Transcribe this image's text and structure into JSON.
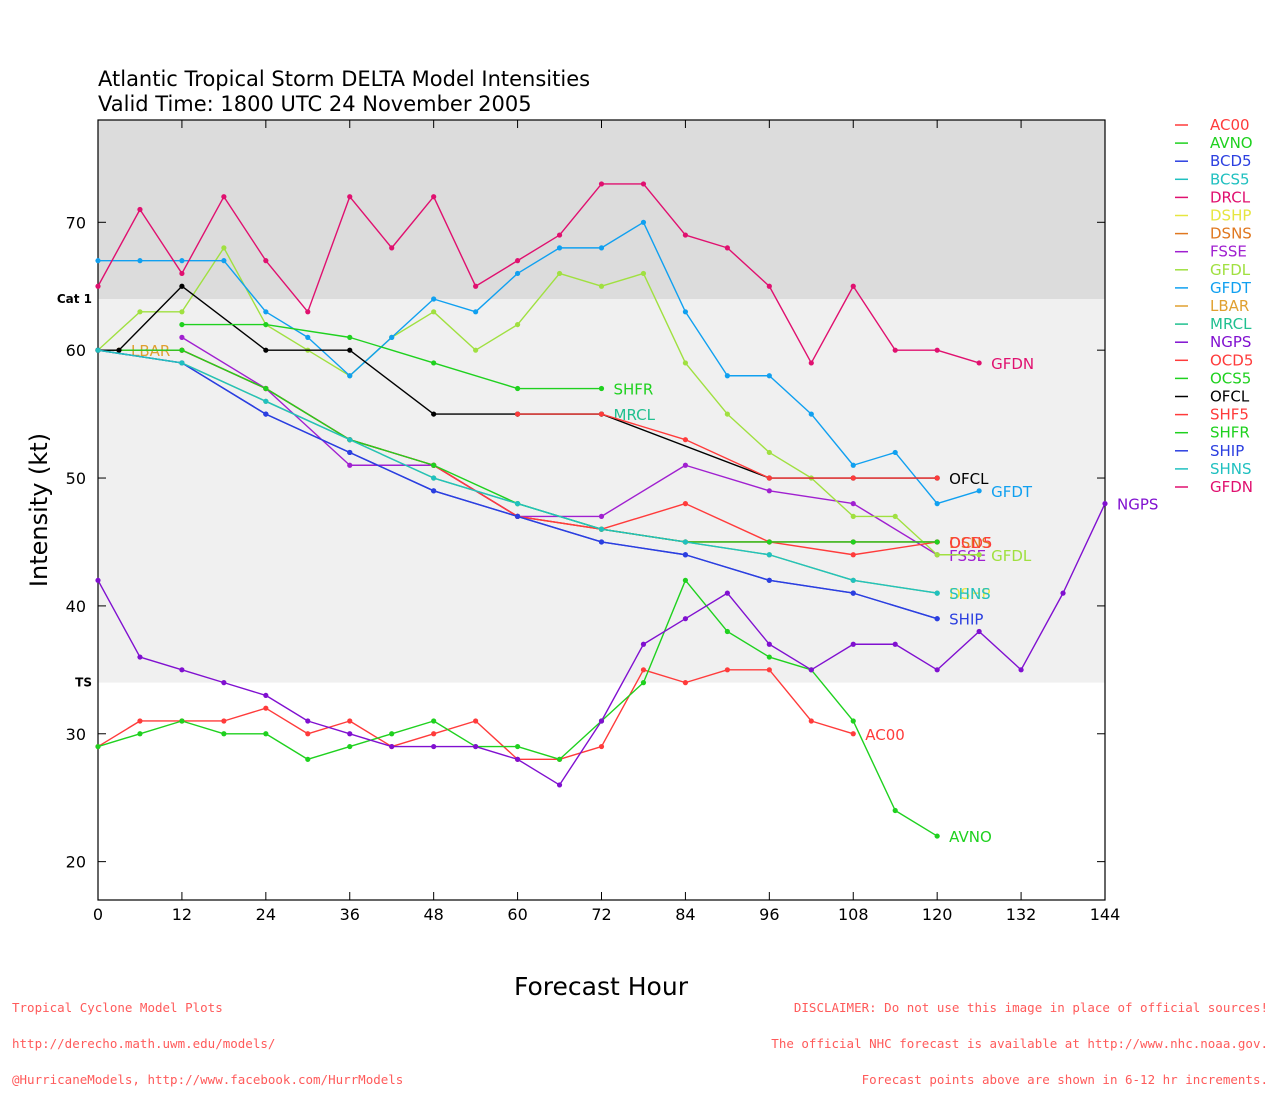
{
  "title_lines": [
    "Atlantic Tropical Storm DELTA Model Intensities",
    "Valid Time: 1800 UTC 24 November 2005"
  ],
  "footer": {
    "left_lines": [
      "Tropical Cyclone Model Plots",
      "http://derecho.math.uwm.edu/models/",
      "@HurricaneModels, http://www.facebook.com/HurrModels"
    ],
    "center": "Forecast Hour",
    "right_lines": [
      "DISCLAIMER: Do not use this image in place of official sources!",
      "The official NHC forecast is available at http://www.nhc.noaa.gov.",
      "Forecast points above are shown in 6-12 hr increments."
    ]
  },
  "chart_data": {
    "type": "line",
    "title": "Atlantic Tropical Storm DELTA Model Intensities",
    "subtitle": "Valid Time: 1800 UTC 24 November 2005",
    "xlabel": "Forecast Hour",
    "ylabel": "Intensity (kt)",
    "xlim": [
      0,
      144
    ],
    "ylim": [
      17,
      78
    ],
    "xticks": [
      0,
      12,
      24,
      36,
      48,
      60,
      72,
      84,
      96,
      108,
      120,
      132,
      144
    ],
    "yticks": [
      20,
      30,
      40,
      50,
      60,
      70
    ],
    "bands": [
      {
        "label": "Cat 1",
        "from": 64,
        "to": 78,
        "color": "#dcdcdc"
      },
      {
        "label": "TS",
        "from": 34,
        "to": 64,
        "color": "#f0f0f0"
      }
    ],
    "legend_position": "right",
    "series": [
      {
        "name": "AC00",
        "color": "#ff3b3b",
        "label": "AC00",
        "points": [
          [
            0,
            29
          ],
          [
            6,
            31
          ],
          [
            12,
            31
          ],
          [
            18,
            31
          ],
          [
            24,
            32
          ],
          [
            30,
            30
          ],
          [
            36,
            31
          ],
          [
            42,
            29
          ],
          [
            48,
            30
          ],
          [
            54,
            31
          ],
          [
            60,
            28
          ],
          [
            66,
            28
          ],
          [
            72,
            29
          ],
          [
            78,
            35
          ],
          [
            84,
            34
          ],
          [
            90,
            35
          ],
          [
            96,
            35
          ],
          [
            102,
            31
          ],
          [
            108,
            30
          ]
        ]
      },
      {
        "name": "AVNO",
        "color": "#1fd11f",
        "label": "AVNO",
        "points": [
          [
            0,
            29
          ],
          [
            6,
            30
          ],
          [
            12,
            31
          ],
          [
            18,
            30
          ],
          [
            24,
            30
          ],
          [
            30,
            28
          ],
          [
            36,
            29
          ],
          [
            42,
            30
          ],
          [
            48,
            31
          ],
          [
            54,
            29
          ],
          [
            60,
            29
          ],
          [
            66,
            28
          ],
          [
            72,
            31
          ],
          [
            78,
            34
          ],
          [
            84,
            42
          ],
          [
            90,
            38
          ],
          [
            96,
            36
          ],
          [
            102,
            35
          ],
          [
            108,
            31
          ],
          [
            114,
            24
          ],
          [
            120,
            22
          ]
        ]
      },
      {
        "name": "BCD5",
        "color": "#2b3fe0",
        "label": "",
        "points": [
          [
            0,
            60
          ],
          [
            12,
            59
          ],
          [
            24,
            55
          ],
          [
            36,
            52
          ],
          [
            48,
            49
          ],
          [
            60,
            47
          ],
          [
            72,
            45
          ],
          [
            84,
            44
          ],
          [
            96,
            42
          ],
          [
            108,
            41
          ],
          [
            120,
            39
          ]
        ]
      },
      {
        "name": "BCS5",
        "color": "#20c0c0",
        "label": "",
        "points": [
          [
            0,
            60
          ],
          [
            12,
            59
          ],
          [
            24,
            56
          ],
          [
            36,
            53
          ],
          [
            48,
            50
          ],
          [
            60,
            48
          ],
          [
            72,
            46
          ],
          [
            84,
            45
          ],
          [
            96,
            44
          ],
          [
            108,
            42
          ],
          [
            120,
            41
          ]
        ]
      },
      {
        "name": "DRCL",
        "color": "#e0106f",
        "label": "",
        "points": [
          [
            0,
            60
          ],
          [
            12,
            60
          ],
          [
            24,
            57
          ],
          [
            36,
            53
          ],
          [
            48,
            51
          ],
          [
            60,
            47
          ],
          [
            72,
            46
          ],
          [
            84,
            45
          ],
          [
            96,
            45
          ],
          [
            108,
            45
          ],
          [
            120,
            45
          ]
        ]
      },
      {
        "name": "DSHP",
        "color": "#e6e640",
        "label": "DSHP",
        "points": [
          [
            0,
            60
          ],
          [
            12,
            59
          ],
          [
            24,
            56
          ],
          [
            36,
            53
          ],
          [
            48,
            50
          ],
          [
            60,
            48
          ],
          [
            72,
            46
          ],
          [
            84,
            45
          ],
          [
            96,
            44
          ],
          [
            108,
            42
          ],
          [
            120,
            41
          ]
        ]
      },
      {
        "name": "DSNS",
        "color": "#e07820",
        "label": "DSNS",
        "points": [
          [
            0,
            60
          ],
          [
            12,
            60
          ],
          [
            24,
            57
          ],
          [
            36,
            53
          ],
          [
            48,
            51
          ],
          [
            60,
            47
          ],
          [
            72,
            46
          ],
          [
            84,
            45
          ],
          [
            96,
            45
          ],
          [
            108,
            45
          ],
          [
            120,
            45
          ]
        ]
      },
      {
        "name": "FSSE",
        "color": "#a020d0",
        "label": "FSSE",
        "points": [
          [
            12,
            61
          ],
          [
            24,
            57
          ],
          [
            36,
            51
          ],
          [
            48,
            51
          ],
          [
            60,
            47
          ],
          [
            72,
            47
          ],
          [
            84,
            51
          ],
          [
            96,
            49
          ],
          [
            108,
            48
          ],
          [
            120,
            44
          ]
        ]
      },
      {
        "name": "GFDL",
        "color": "#a0e040",
        "label": "GFDL",
        "points": [
          [
            0,
            60
          ],
          [
            6,
            63
          ],
          [
            12,
            63
          ],
          [
            18,
            68
          ],
          [
            24,
            62
          ],
          [
            30,
            60
          ],
          [
            36,
            58
          ],
          [
            42,
            61
          ],
          [
            48,
            63
          ],
          [
            54,
            60
          ],
          [
            60,
            62
          ],
          [
            66,
            66
          ],
          [
            72,
            65
          ],
          [
            78,
            66
          ],
          [
            84,
            59
          ],
          [
            90,
            55
          ],
          [
            96,
            52
          ],
          [
            102,
            50
          ],
          [
            108,
            47
          ],
          [
            114,
            47
          ],
          [
            120,
            44
          ],
          [
            126,
            44
          ]
        ]
      },
      {
        "name": "GFDT",
        "color": "#10a0f0",
        "label": "GFDT",
        "points": [
          [
            0,
            67
          ],
          [
            6,
            67
          ],
          [
            12,
            67
          ],
          [
            18,
            67
          ],
          [
            24,
            63
          ],
          [
            30,
            61
          ],
          [
            36,
            58
          ],
          [
            42,
            61
          ],
          [
            48,
            64
          ],
          [
            54,
            63
          ],
          [
            60,
            66
          ],
          [
            66,
            68
          ],
          [
            72,
            68
          ],
          [
            78,
            70
          ],
          [
            84,
            63
          ],
          [
            90,
            58
          ],
          [
            96,
            58
          ],
          [
            102,
            55
          ],
          [
            108,
            51
          ],
          [
            114,
            52
          ],
          [
            120,
            48
          ],
          [
            126,
            49
          ]
        ]
      },
      {
        "name": "LBAR",
        "color": "#e0a030",
        "label": "LBAR",
        "points": [
          [
            0,
            60
          ],
          [
            3,
            60
          ]
        ]
      },
      {
        "name": "MRCL",
        "color": "#20c090",
        "label": "MRCL",
        "points": [
          [
            60,
            55
          ],
          [
            72,
            55
          ]
        ]
      },
      {
        "name": "NGPS",
        "color": "#8010d0",
        "label": "NGPS",
        "points": [
          [
            0,
            42
          ],
          [
            6,
            36
          ],
          [
            12,
            35
          ],
          [
            18,
            34
          ],
          [
            24,
            33
          ],
          [
            30,
            31
          ],
          [
            36,
            30
          ],
          [
            42,
            29
          ],
          [
            48,
            29
          ],
          [
            54,
            29
          ],
          [
            60,
            28
          ],
          [
            66,
            26
          ],
          [
            72,
            31
          ],
          [
            78,
            37
          ],
          [
            84,
            39
          ],
          [
            90,
            41
          ],
          [
            96,
            37
          ],
          [
            102,
            35
          ],
          [
            108,
            37
          ],
          [
            114,
            37
          ],
          [
            120,
            35
          ],
          [
            126,
            38
          ],
          [
            132,
            35
          ],
          [
            138,
            41
          ],
          [
            144,
            48
          ]
        ]
      },
      {
        "name": "OCD5",
        "color": "#ff3b3b",
        "label": "OCD5",
        "points": [
          [
            0,
            60
          ],
          [
            12,
            60
          ],
          [
            24,
            57
          ],
          [
            36,
            53
          ],
          [
            48,
            51
          ],
          [
            60,
            47
          ],
          [
            72,
            46
          ],
          [
            84,
            48
          ],
          [
            96,
            45
          ],
          [
            108,
            44
          ],
          [
            120,
            45
          ]
        ]
      },
      {
        "name": "OCS5",
        "color": "#1fd11f",
        "label": "",
        "points": [
          [
            0,
            60
          ],
          [
            12,
            60
          ],
          [
            24,
            57
          ],
          [
            36,
            53
          ],
          [
            48,
            51
          ],
          [
            60,
            48
          ],
          [
            72,
            46
          ],
          [
            84,
            45
          ],
          [
            96,
            45
          ],
          [
            108,
            45
          ],
          [
            120,
            45
          ]
        ]
      },
      {
        "name": "OFCL",
        "color": "#000000",
        "label": "OFCL",
        "points": [
          [
            0,
            60
          ],
          [
            3,
            60
          ],
          [
            12,
            65
          ],
          [
            24,
            60
          ],
          [
            36,
            60
          ],
          [
            48,
            55
          ],
          [
            60,
            55
          ],
          [
            72,
            55
          ],
          [
            96,
            50
          ],
          [
            108,
            50
          ],
          [
            120,
            50
          ]
        ]
      },
      {
        "name": "SHF5",
        "color": "#ff3b3b",
        "label": "",
        "points": [
          [
            60,
            55
          ],
          [
            72,
            55
          ],
          [
            84,
            53
          ],
          [
            96,
            50
          ],
          [
            108,
            50
          ],
          [
            120,
            50
          ]
        ]
      },
      {
        "name": "SHFR",
        "color": "#1fd11f",
        "label": "SHFR",
        "points": [
          [
            12,
            62
          ],
          [
            24,
            62
          ],
          [
            36,
            61
          ],
          [
            48,
            59
          ],
          [
            60,
            57
          ],
          [
            72,
            57
          ]
        ]
      },
      {
        "name": "SHIP",
        "color": "#2b3fe0",
        "label": "SHIP",
        "points": [
          [
            0,
            60
          ],
          [
            12,
            59
          ],
          [
            24,
            55
          ],
          [
            36,
            52
          ],
          [
            48,
            49
          ],
          [
            60,
            47
          ],
          [
            72,
            45
          ],
          [
            84,
            44
          ],
          [
            96,
            42
          ],
          [
            108,
            41
          ],
          [
            120,
            39
          ]
        ]
      },
      {
        "name": "SHNS",
        "color": "#20c0c0",
        "label": "SHNS",
        "points": [
          [
            0,
            60
          ],
          [
            12,
            59
          ],
          [
            24,
            56
          ],
          [
            36,
            53
          ],
          [
            48,
            50
          ],
          [
            60,
            48
          ],
          [
            72,
            46
          ],
          [
            84,
            45
          ],
          [
            96,
            44
          ],
          [
            108,
            42
          ],
          [
            120,
            41
          ]
        ]
      },
      {
        "name": "GFDN",
        "color": "#e0106f",
        "label": "GFDN",
        "points": [
          [
            0,
            65
          ],
          [
            6,
            71
          ],
          [
            12,
            66
          ],
          [
            18,
            72
          ],
          [
            24,
            67
          ],
          [
            30,
            63
          ],
          [
            36,
            72
          ],
          [
            42,
            68
          ],
          [
            48,
            72
          ],
          [
            54,
            65
          ],
          [
            60,
            67
          ],
          [
            66,
            69
          ],
          [
            72,
            73
          ],
          [
            78,
            73
          ],
          [
            84,
            69
          ],
          [
            90,
            68
          ],
          [
            96,
            65
          ],
          [
            102,
            59
          ],
          [
            108,
            65
          ],
          [
            114,
            60
          ],
          [
            120,
            60
          ],
          [
            126,
            59
          ]
        ]
      }
    ]
  }
}
